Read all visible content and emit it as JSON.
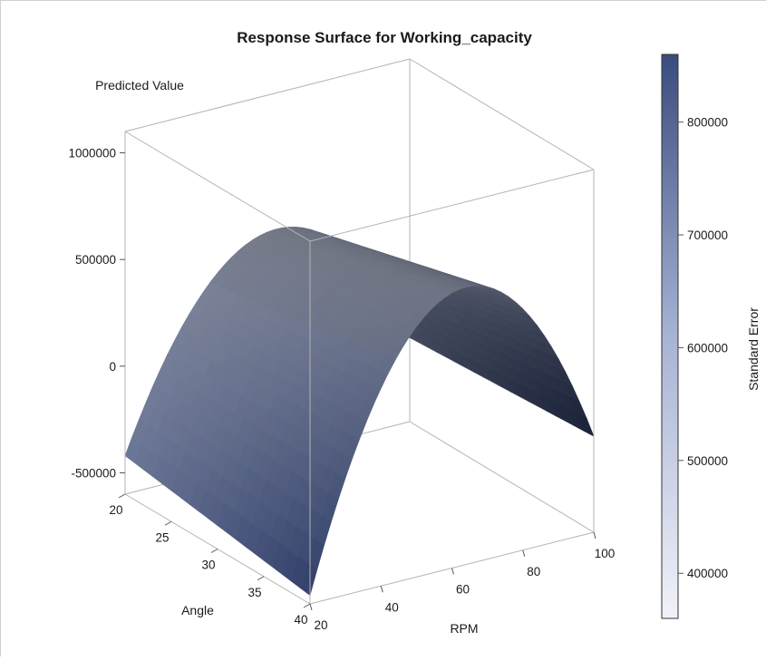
{
  "chart_data": {
    "type": "surface",
    "title": "Response Surface for Working_capacity",
    "z_label": "Predicted Value",
    "x_label": "RPM",
    "y_label": "Angle",
    "colorbar_label": "Standard Error",
    "x_ticks": [
      20,
      40,
      60,
      80,
      100
    ],
    "y_ticks": [
      20,
      25,
      30,
      35,
      40
    ],
    "z_ticks": [
      1000000,
      500000,
      0,
      -500000
    ],
    "z_tick_labels": [
      "1000000",
      "500000",
      "0",
      "-500000"
    ],
    "colorbar_ticks": [
      800000,
      700000,
      600000,
      500000,
      400000
    ],
    "colorbar_tick_labels": [
      "800000",
      "700000",
      "600000",
      "500000",
      "400000"
    ],
    "x_range": [
      20,
      100
    ],
    "y_range": [
      20,
      40
    ],
    "z_range": [
      -600000,
      1100000
    ],
    "colorbar_range": [
      360000,
      860000
    ],
    "colorbar_colors": {
      "low": "#f1f2f9",
      "mid": "#a7b3d4",
      "high": "#3a4c7e"
    },
    "surface": {
      "description_values": [
        {
          "rpm": 20,
          "angle": 20,
          "predicted": -420000
        },
        {
          "rpm": 60,
          "angle": 20,
          "predicted": 460000
        },
        {
          "rpm": 100,
          "angle": 20,
          "predicted": -200000
        },
        {
          "rpm": 20,
          "angle": 40,
          "predicted": -560000
        },
        {
          "rpm": 60,
          "angle": 40,
          "predicted": 690000
        },
        {
          "rpm": 100,
          "angle": 40,
          "predicted": -150000
        }
      ]
    }
  }
}
